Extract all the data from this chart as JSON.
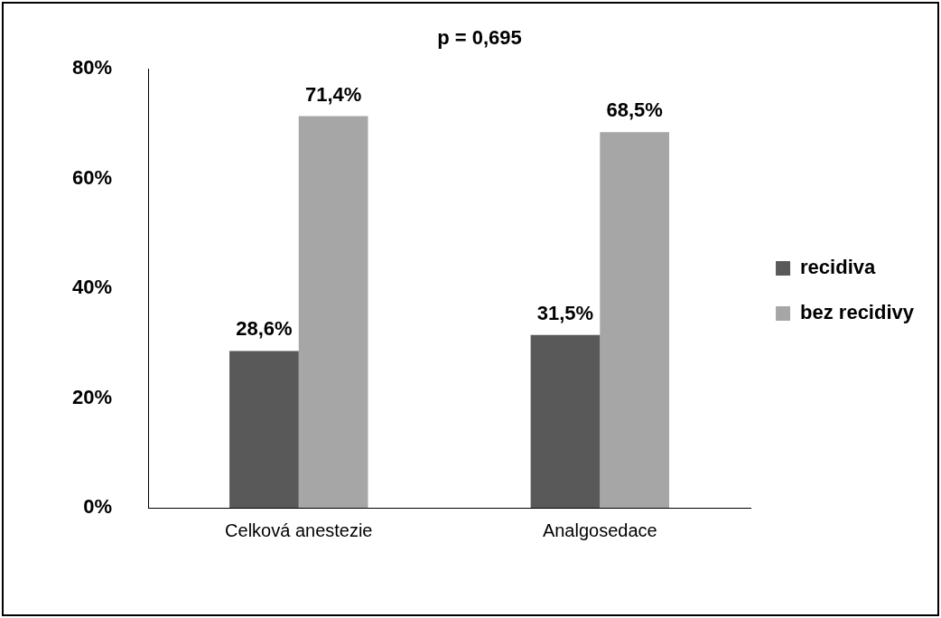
{
  "chart_data": {
    "type": "bar",
    "title": "p = 0,695",
    "categories": [
      "Celková anestezie",
      "Analgosedace"
    ],
    "series": [
      {
        "name": "recidiva",
        "color": "#595959",
        "values": [
          28.6,
          31.5
        ],
        "value_labels": [
          "28,6%",
          "31,5%"
        ]
      },
      {
        "name": "bez recidivy",
        "color": "#a6a6a6",
        "values": [
          71.4,
          68.5
        ],
        "value_labels": [
          "71,4%",
          "68,5%"
        ]
      }
    ],
    "ylim": [
      0,
      80
    ],
    "yticks": [
      {
        "value": 0,
        "label": "0%"
      },
      {
        "value": 20,
        "label": "20%"
      },
      {
        "value": 40,
        "label": "40%"
      },
      {
        "value": 60,
        "label": "60%"
      },
      {
        "value": 80,
        "label": "80%"
      }
    ],
    "grid": false,
    "legend": "right"
  }
}
